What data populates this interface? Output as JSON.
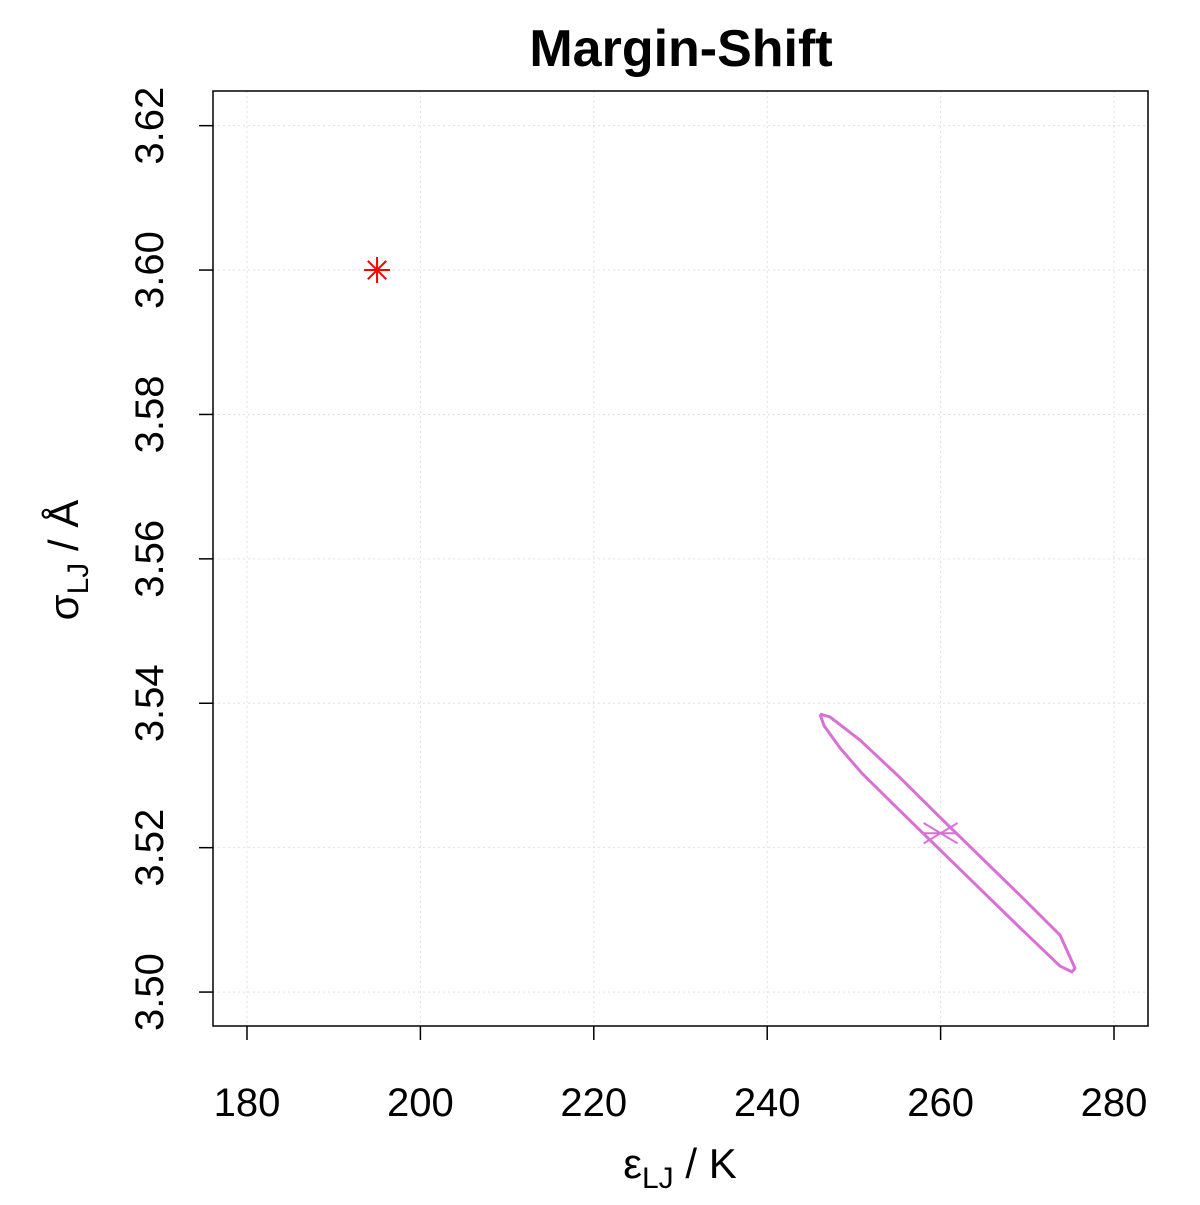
{
  "chart_data": {
    "type": "scatter",
    "title": "Margin-Shift",
    "xlabel": {
      "symbol": "ε",
      "subscript": "LJ",
      "unit": " / K"
    },
    "ylabel": {
      "symbol": "σ",
      "subscript": "LJ",
      "unit": " / Å"
    },
    "xlim": [
      176.08,
      283.92
    ],
    "xticks": [
      180,
      200,
      220,
      240,
      260,
      280
    ],
    "ylim": [
      3.4953,
      3.6248
    ],
    "yticks": [
      {
        "value": 3.5,
        "label": "3.50"
      },
      3.52,
      3.54,
      3.56,
      3.58,
      {
        "value": 3.6,
        "label": "3.60"
      },
      3.62
    ],
    "grid": true,
    "series": [
      {
        "type": "line",
        "color": "#da70d6",
        "x": [
          246.09,
          247.24,
          250.7,
          255.32,
          259.93,
          264.54,
          269.16,
          273.77,
          275.5,
          275.16,
          273.77,
          269.16,
          264.54,
          259.93,
          255.32,
          250.93,
          248.4,
          246.55,
          246.09
        ],
        "y": [
          3.5385,
          3.5381,
          3.5349,
          3.5297,
          3.5242,
          3.5188,
          3.5134,
          3.5079,
          3.5033,
          3.5028,
          3.5036,
          3.5089,
          3.5143,
          3.5197,
          3.5251,
          3.5303,
          3.5338,
          3.5369,
          3.5385
        ]
      },
      {
        "type": "asterisk",
        "color": "#ff0000",
        "x": [
          195
        ],
        "y": [
          3.6
        ]
      },
      {
        "type": "cross",
        "color": "#da70d6",
        "x": [
          260
        ],
        "y": [
          3.522
        ]
      }
    ]
  }
}
